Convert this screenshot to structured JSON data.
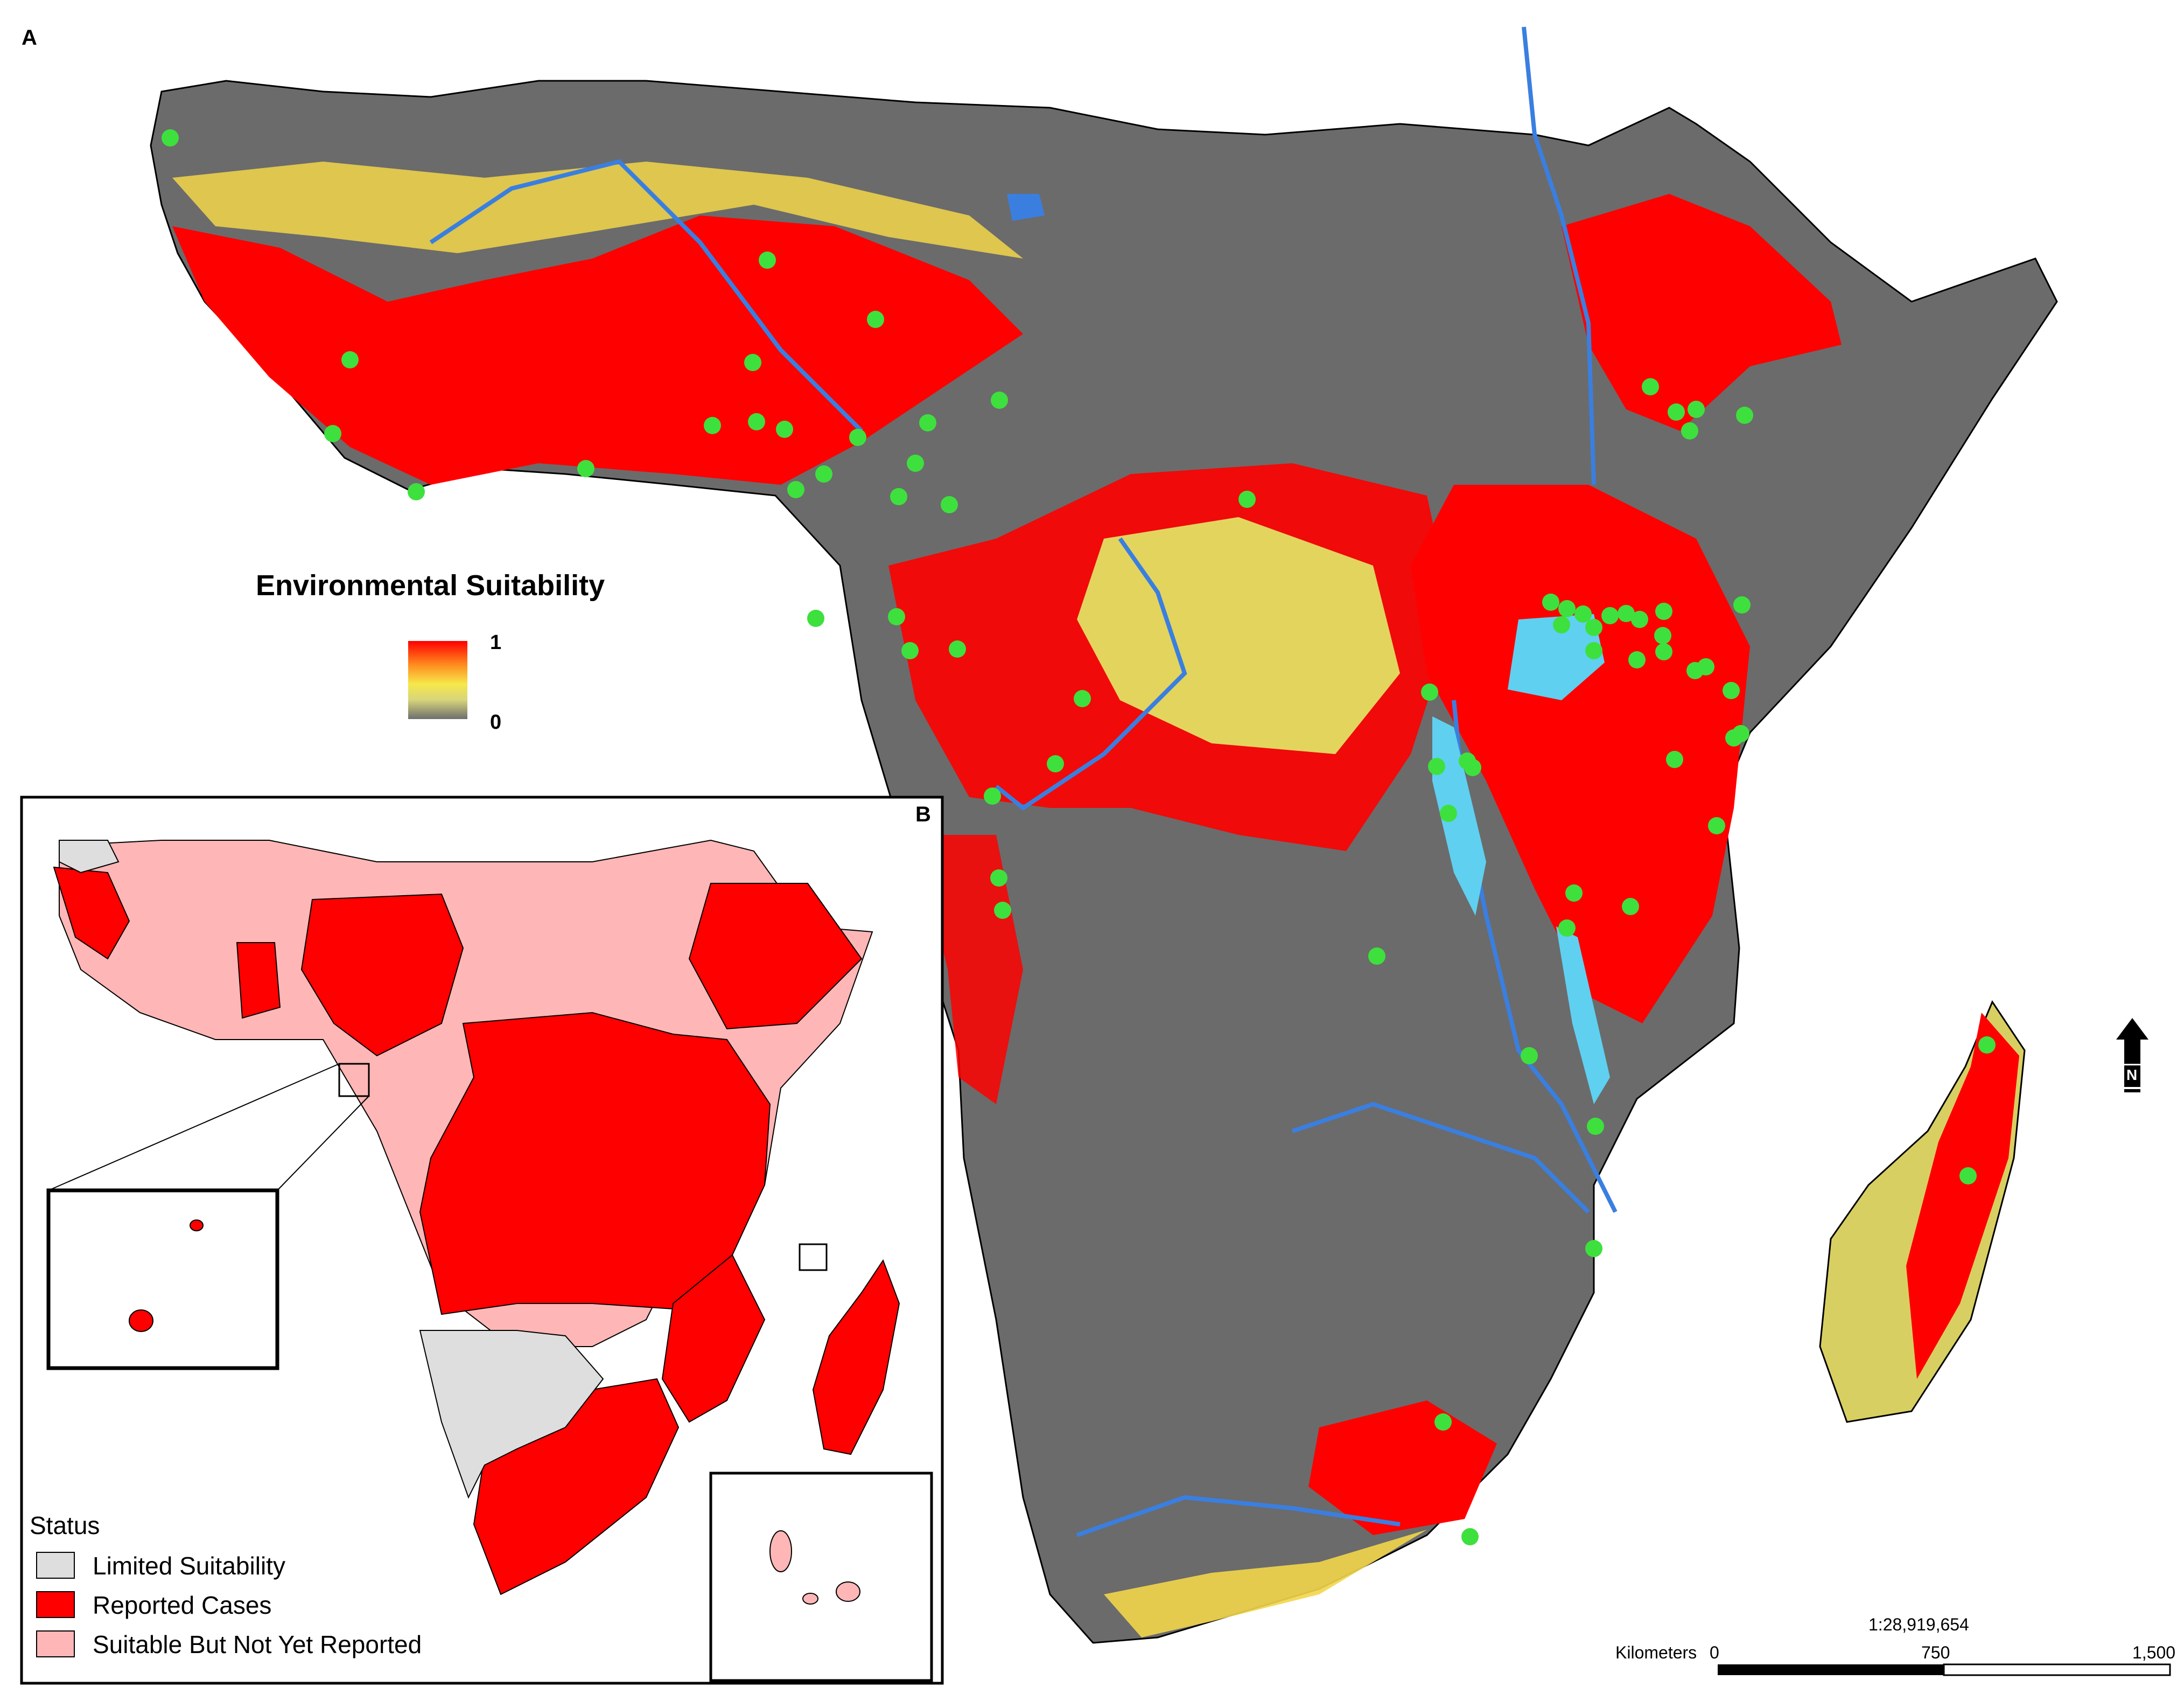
{
  "panels": {
    "a": {
      "letter": "A"
    },
    "b": {
      "letter": "B"
    }
  },
  "suitability_legend": {
    "title": "Environmental Suitability",
    "max_label": "1",
    "min_label": "0",
    "ramp_colors": [
      "#ff0000",
      "#ff8a1e",
      "#f6e84a",
      "#d8d67a",
      "#6e6e6e"
    ]
  },
  "status_legend": {
    "title": "Status",
    "items": [
      {
        "label": "Limited Suitability",
        "color": "#dedede"
      },
      {
        "label": "Reported Cases",
        "color": "#ff0000"
      },
      {
        "label": "Suitable But Not Yet Reported",
        "color": "#ffb6b6"
      }
    ]
  },
  "scale": {
    "ratio": "1:28,919,654",
    "unit_label": "Kilometers",
    "tick_labels": [
      "0",
      "750",
      "1,500"
    ]
  },
  "north_arrow": {
    "letter": "N"
  },
  "colors": {
    "high_suitability": "#ff0000",
    "mid_suitability": "#f6e84a",
    "low_suitability": "#6b6b6b",
    "occurrence_point": "#3ee03e",
    "water": "#3a7fe0",
    "lake": "#5fd0f0"
  }
}
